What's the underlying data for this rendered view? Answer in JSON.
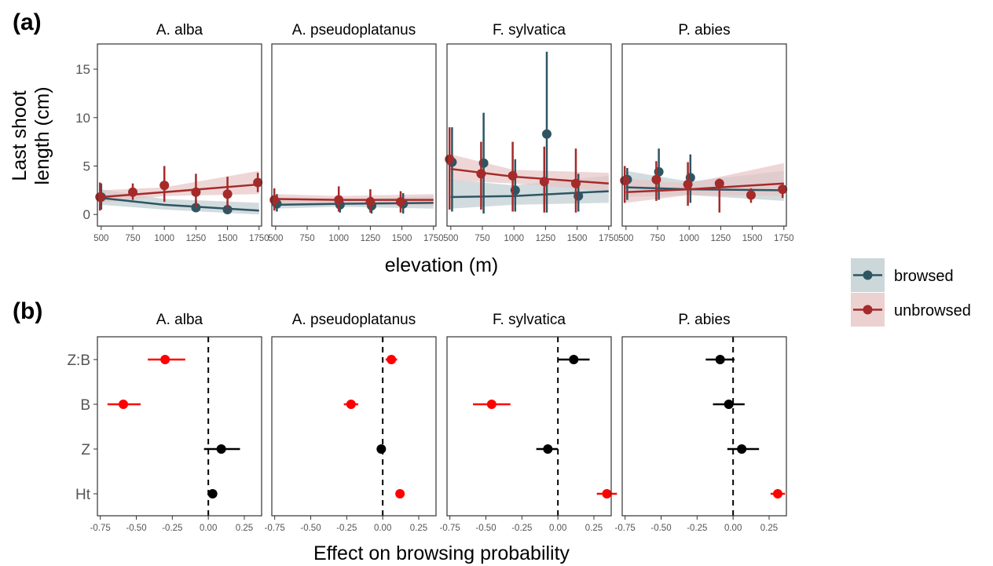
{
  "panel_labels": {
    "a": "(a)",
    "b": "(b)"
  },
  "colors": {
    "browsed": "#2f5563",
    "unbrowsed": "#a52a2a",
    "browsed_band": "#bfcdd1",
    "unbrowsed_band": "#e7c5c5",
    "significant": "#ff0000",
    "not_significant": "#000000"
  },
  "legend": {
    "position": "right",
    "items": [
      {
        "key": "browsed",
        "label": "browsed"
      },
      {
        "key": "unbrowsed",
        "label": "unbrowsed"
      }
    ]
  },
  "chart_data": [
    {
      "id": "a",
      "type": "scatter",
      "ylabel": "Last shoot\nlength (cm)",
      "xlabel": "elevation (m)",
      "xlim": [
        470,
        1770
      ],
      "ylim": [
        -1.2,
        17.6
      ],
      "xticks": [
        500,
        750,
        1000,
        1250,
        1500,
        1750
      ],
      "yticks": [
        0,
        5,
        10,
        15
      ],
      "facets": [
        {
          "name": "A. alba",
          "browsed": {
            "points": [
              [
                500,
                1.8,
                0.5,
                3.2
              ],
              [
                1250,
                0.7,
                0.3,
                1.5
              ],
              [
                1500,
                0.5,
                0.2,
                0.9
              ]
            ],
            "fit": [
              [
                500,
                1.7
              ],
              [
                1000,
                1.0
              ],
              [
                1750,
                0.4
              ]
            ],
            "band": [
              [
                500,
                1.0,
                2.6
              ],
              [
                1000,
                0.5,
                1.6
              ],
              [
                1750,
                0.0,
                1.2
              ]
            ]
          },
          "unbrowsed": {
            "points": [
              [
                490,
                1.8,
                0.4,
                3.3
              ],
              [
                750,
                2.3,
                1.5,
                3.2
              ],
              [
                1000,
                3.0,
                1.3,
                5.0
              ],
              [
                1250,
                2.3,
                0.7,
                4.2
              ],
              [
                1500,
                2.1,
                0.6,
                3.9
              ],
              [
                1740,
                3.3,
                2.3,
                4.3
              ]
            ],
            "fit": [
              [
                500,
                1.8
              ],
              [
                1000,
                2.3
              ],
              [
                1750,
                3.1
              ]
            ],
            "band": [
              [
                500,
                1.2,
                2.5
              ],
              [
                1000,
                1.9,
                2.8
              ],
              [
                1750,
                2.1,
                4.5
              ]
            ]
          }
        },
        {
          "name": "A. pseudoplatanus",
          "browsed": {
            "points": [
              [
                510,
                1.1,
                0.3,
                2.1
              ],
              [
                1010,
                1.0,
                0.2,
                1.9
              ],
              [
                1260,
                0.9,
                0.1,
                1.8
              ],
              [
                1510,
                1.1,
                0.1,
                2.2
              ]
            ],
            "fit": [
              [
                500,
                1.0
              ],
              [
                1000,
                1.1
              ],
              [
                1750,
                1.2
              ]
            ],
            "band": [
              [
                500,
                0.6,
                1.6
              ],
              [
                1000,
                0.8,
                1.5
              ],
              [
                1750,
                0.6,
                1.9
              ]
            ]
          },
          "unbrowsed": {
            "points": [
              [
                490,
                1.5,
                0.4,
                2.7
              ],
              [
                1000,
                1.5,
                0.3,
                2.9
              ],
              [
                1250,
                1.3,
                0.2,
                2.6
              ],
              [
                1490,
                1.3,
                0.2,
                2.4
              ]
            ],
            "fit": [
              [
                500,
                1.6
              ],
              [
                1000,
                1.5
              ],
              [
                1750,
                1.5
              ]
            ],
            "band": [
              [
                500,
                1.1,
                2.1
              ],
              [
                1000,
                1.1,
                1.9
              ],
              [
                1750,
                0.9,
                2.1
              ]
            ]
          }
        },
        {
          "name": "F. sylvatica",
          "browsed": {
            "points": [
              [
                510,
                5.4,
                0.3,
                9.0
              ],
              [
                760,
                5.3,
                0.1,
                10.5
              ],
              [
                1010,
                2.5,
                0.3,
                5.7
              ],
              [
                1260,
                8.3,
                0.2,
                16.8
              ],
              [
                1510,
                1.9,
                0.3,
                4.2
              ]
            ],
            "fit": [
              [
                500,
                1.8
              ],
              [
                1000,
                1.9
              ],
              [
                1750,
                2.4
              ]
            ],
            "band": [
              [
                500,
                0.6,
                3.6
              ],
              [
                1000,
                1.0,
                3.0
              ],
              [
                1750,
                1.2,
                4.0
              ]
            ]
          },
          "unbrowsed": {
            "points": [
              [
                490,
                5.7,
                0.5,
                9.0
              ],
              [
                740,
                4.2,
                0.5,
                7.5
              ],
              [
                990,
                4.0,
                0.3,
                7.5
              ],
              [
                1240,
                3.4,
                0.2,
                7.0
              ],
              [
                1490,
                3.2,
                0.2,
                6.8
              ]
            ],
            "fit": [
              [
                500,
                4.7
              ],
              [
                1000,
                3.9
              ],
              [
                1750,
                3.2
              ]
            ],
            "band": [
              [
                500,
                3.5,
                6.2
              ],
              [
                1000,
                3.2,
                4.6
              ],
              [
                1750,
                2.4,
                4.3
              ]
            ]
          }
        },
        {
          "name": "P. abies",
          "browsed": {
            "points": [
              [
                510,
                3.6,
                1.5,
                4.8
              ],
              [
                760,
                4.4,
                1.5,
                6.8
              ],
              [
                1010,
                3.8,
                1.2,
                6.2
              ]
            ],
            "fit": [
              [
                500,
                2.8
              ],
              [
                1000,
                2.6
              ],
              [
                1750,
                2.5
              ]
            ],
            "band": [
              [
                500,
                1.8,
                4.5
              ],
              [
                1000,
                2.0,
                3.4
              ],
              [
                1750,
                1.4,
                4.5
              ]
            ]
          },
          "unbrowsed": {
            "points": [
              [
                490,
                3.5,
                1.2,
                5.0
              ],
              [
                740,
                3.6,
                1.4,
                5.5
              ],
              [
                990,
                3.1,
                0.9,
                5.4
              ],
              [
                1240,
                3.2,
                0.2,
                3.7
              ],
              [
                1490,
                2.0,
                1.2,
                2.7
              ],
              [
                1740,
                2.6,
                1.7,
                3.0
              ]
            ],
            "fit": [
              [
                500,
                2.3
              ],
              [
                1000,
                2.6
              ],
              [
                1750,
                3.2
              ]
            ],
            "band": [
              [
                500,
                1.2,
                3.7
              ],
              [
                1000,
                2.0,
                3.2
              ],
              [
                1750,
                1.9,
                5.3
              ]
            ]
          }
        }
      ]
    },
    {
      "id": "b",
      "type": "scatter",
      "xlabel": "Effect on browsing probability",
      "xlim": [
        -0.77,
        0.37
      ],
      "xticks": [
        -0.75,
        -0.5,
        -0.25,
        0.0,
        0.25
      ],
      "xtick_labels": [
        "-0.75",
        "-0.50",
        "-0.25",
        "0.00",
        "0.25"
      ],
      "categories": [
        "Z:B",
        "B",
        "Z",
        "Ht"
      ],
      "reference_line": 0,
      "facets": [
        {
          "name": "A. alba",
          "estimates": [
            {
              "term": "Z:B",
              "value": -0.3,
              "low": -0.42,
              "high": -0.16,
              "significant": true
            },
            {
              "term": "B",
              "value": -0.59,
              "low": -0.7,
              "high": -0.47,
              "significant": true
            },
            {
              "term": "Z",
              "value": 0.09,
              "low": -0.03,
              "high": 0.22,
              "significant": false
            },
            {
              "term": "Ht",
              "value": 0.03,
              "low": 0.0,
              "high": 0.06,
              "significant": false
            }
          ]
        },
        {
          "name": "A. pseudoplatanus",
          "estimates": [
            {
              "term": "Z:B",
              "value": 0.06,
              "low": 0.02,
              "high": 0.1,
              "significant": true
            },
            {
              "term": "B",
              "value": -0.22,
              "low": -0.27,
              "high": -0.17,
              "significant": true
            },
            {
              "term": "Z",
              "value": -0.01,
              "low": -0.03,
              "high": 0.01,
              "significant": false
            },
            {
              "term": "Ht",
              "value": 0.12,
              "low": 0.11,
              "high": 0.13,
              "significant": true
            }
          ]
        },
        {
          "name": "F. sylvatica",
          "estimates": [
            {
              "term": "Z:B",
              "value": 0.11,
              "low": 0.0,
              "high": 0.22,
              "significant": false
            },
            {
              "term": "B",
              "value": -0.46,
              "low": -0.59,
              "high": -0.33,
              "significant": true
            },
            {
              "term": "Z",
              "value": -0.07,
              "low": -0.15,
              "high": 0.0,
              "significant": false
            },
            {
              "term": "Ht",
              "value": 0.34,
              "low": 0.27,
              "high": 0.41,
              "significant": true
            }
          ]
        },
        {
          "name": "P. abies",
          "estimates": [
            {
              "term": "Z:B",
              "value": -0.09,
              "low": -0.19,
              "high": 0.01,
              "significant": false
            },
            {
              "term": "B",
              "value": -0.03,
              "low": -0.14,
              "high": 0.08,
              "significant": false
            },
            {
              "term": "Z",
              "value": 0.06,
              "low": -0.04,
              "high": 0.18,
              "significant": false
            },
            {
              "term": "Ht",
              "value": 0.31,
              "low": 0.26,
              "high": 0.36,
              "significant": true
            }
          ]
        }
      ]
    }
  ]
}
